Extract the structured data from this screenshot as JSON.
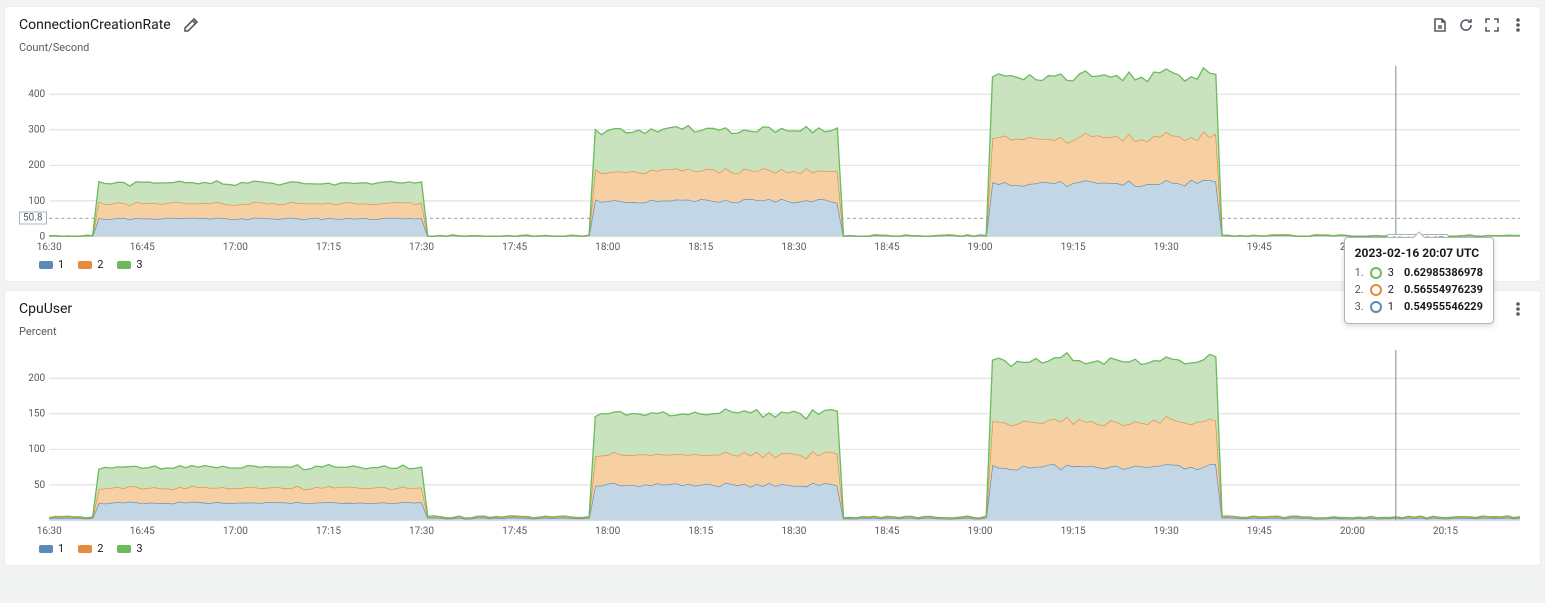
{
  "colors": {
    "series1_fill": "#c3d6e5",
    "series1_stroke": "#5b8ab6",
    "series2_fill": "#f6cfa3",
    "series2_stroke": "#e78a3e",
    "series3_fill": "#c8e3bd",
    "series3_stroke": "#6bbb5b",
    "grid": "#d9dddd",
    "axis_text": "#545b64",
    "hover_line": "#7d8998"
  },
  "time": {
    "domain_min": 990,
    "domain_max": 1227,
    "ticks": [
      {
        "v": 990,
        "label": "16:30"
      },
      {
        "v": 1005,
        "label": "16:45"
      },
      {
        "v": 1020,
        "label": "17:00"
      },
      {
        "v": 1035,
        "label": "17:15"
      },
      {
        "v": 1050,
        "label": "17:30"
      },
      {
        "v": 1065,
        "label": "17:45"
      },
      {
        "v": 1080,
        "label": "18:00"
      },
      {
        "v": 1095,
        "label": "18:15"
      },
      {
        "v": 1110,
        "label": "18:30"
      },
      {
        "v": 1125,
        "label": "18:45"
      },
      {
        "v": 1140,
        "label": "19:00"
      },
      {
        "v": 1155,
        "label": "19:15"
      },
      {
        "v": 1170,
        "label": "19:30"
      },
      {
        "v": 1185,
        "label": "19:45"
      },
      {
        "v": 1200,
        "label": "20:00"
      },
      {
        "v": 1215,
        "label": "20:15"
      }
    ],
    "hover_x": 1207,
    "hover_label": "02-16 20:07"
  },
  "runs": [
    {
      "start": 998,
      "end": 1050,
      "amp": 1
    },
    {
      "start": 1078,
      "end": 1117,
      "amp": 2
    },
    {
      "start": 1142,
      "end": 1178,
      "amp": 3
    }
  ],
  "panels": [
    {
      "id": "conn",
      "title": "ConnectionCreationRate",
      "ylabel": "Count/Second",
      "show_toolbar": true,
      "ymax": 480,
      "yticks": [
        0,
        100,
        200,
        300,
        400
      ],
      "baseline": 50.8,
      "base_per_series": 50,
      "idle": 1,
      "noise": 6
    },
    {
      "id": "cpu",
      "title": "CpuUser",
      "ylabel": "Percent",
      "show_toolbar": false,
      "ymax": 240,
      "yticks": [
        50,
        100,
        150,
        200
      ],
      "baseline": null,
      "base_per_series": 25,
      "idle": 3,
      "noise": 3
    }
  ],
  "legend_labels": [
    "1",
    "2",
    "3"
  ],
  "tooltip": {
    "title": "2023-02-16 20:07 UTC",
    "rows": [
      {
        "idx": "1.",
        "color_key": "series3_stroke",
        "label": "3",
        "value": "0.62985386978"
      },
      {
        "idx": "2.",
        "color_key": "series2_stroke",
        "label": "2",
        "value": "0.56554976239"
      },
      {
        "idx": "3.",
        "color_key": "series1_stroke",
        "label": "1",
        "value": "0.54955546229"
      }
    ]
  }
}
